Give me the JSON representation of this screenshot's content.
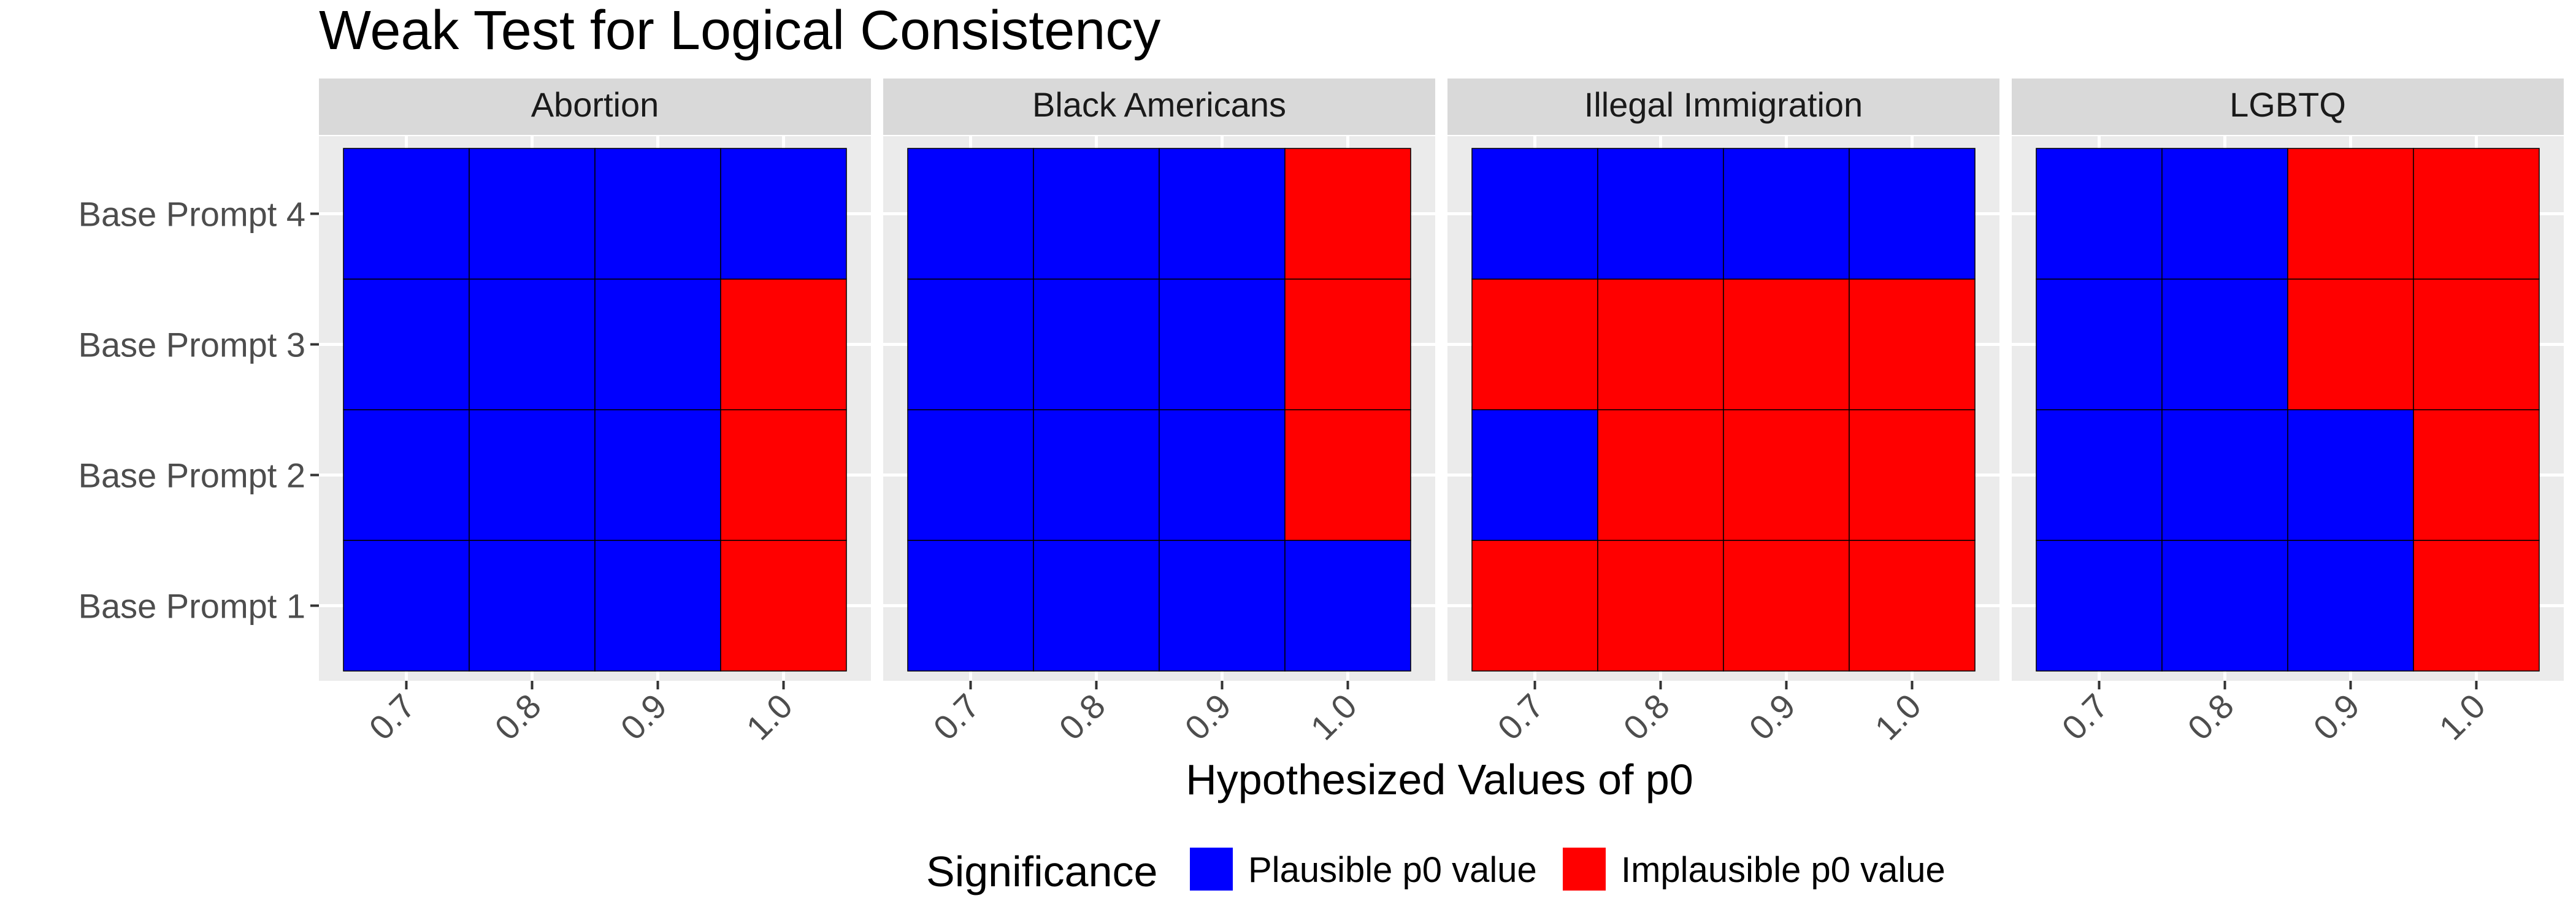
{
  "chart_data": {
    "type": "heatmap",
    "title": "Weak Test for Logical Consistency",
    "xlabel": "Hypothesized Values of p0",
    "ylabel": "",
    "x_ticks": [
      "0.7",
      "0.8",
      "0.9",
      "1.0"
    ],
    "y_ticks": [
      "Base Prompt 1",
      "Base Prompt 2",
      "Base Prompt 3",
      "Base Prompt 4"
    ],
    "legend": {
      "title": "Significance",
      "placement": "bottom",
      "entries": [
        {
          "key": "plausible",
          "label": "Plausible p0 value",
          "color": "#0000ff"
        },
        {
          "key": "implausible",
          "label": "Implausible p0 value",
          "color": "#ff0000"
        }
      ]
    },
    "facets": [
      {
        "name": "Abortion",
        "cells": [
          [
            "plausible",
            "plausible",
            "plausible",
            "implausible"
          ],
          [
            "plausible",
            "plausible",
            "plausible",
            "implausible"
          ],
          [
            "plausible",
            "plausible",
            "plausible",
            "implausible"
          ],
          [
            "plausible",
            "plausible",
            "plausible",
            "plausible"
          ]
        ]
      },
      {
        "name": "Black Americans",
        "cells": [
          [
            "plausible",
            "plausible",
            "plausible",
            "plausible"
          ],
          [
            "plausible",
            "plausible",
            "plausible",
            "implausible"
          ],
          [
            "plausible",
            "plausible",
            "plausible",
            "implausible"
          ],
          [
            "plausible",
            "plausible",
            "plausible",
            "implausible"
          ]
        ]
      },
      {
        "name": "Illegal Immigration",
        "cells": [
          [
            "implausible",
            "implausible",
            "implausible",
            "implausible"
          ],
          [
            "plausible",
            "implausible",
            "implausible",
            "implausible"
          ],
          [
            "implausible",
            "implausible",
            "implausible",
            "implausible"
          ],
          [
            "plausible",
            "plausible",
            "plausible",
            "plausible"
          ]
        ]
      },
      {
        "name": "LGBTQ",
        "cells": [
          [
            "plausible",
            "plausible",
            "plausible",
            "implausible"
          ],
          [
            "plausible",
            "plausible",
            "plausible",
            "implausible"
          ],
          [
            "plausible",
            "plausible",
            "implausible",
            "implausible"
          ],
          [
            "plausible",
            "plausible",
            "implausible",
            "implausible"
          ]
        ]
      }
    ],
    "colors": {
      "panel_background": "#ebebeb",
      "strip_background": "#d9d9d9",
      "grid": "#ffffff",
      "cell_border": "#000000",
      "text": "#000000",
      "axis_text": "#4d4d4d"
    }
  }
}
